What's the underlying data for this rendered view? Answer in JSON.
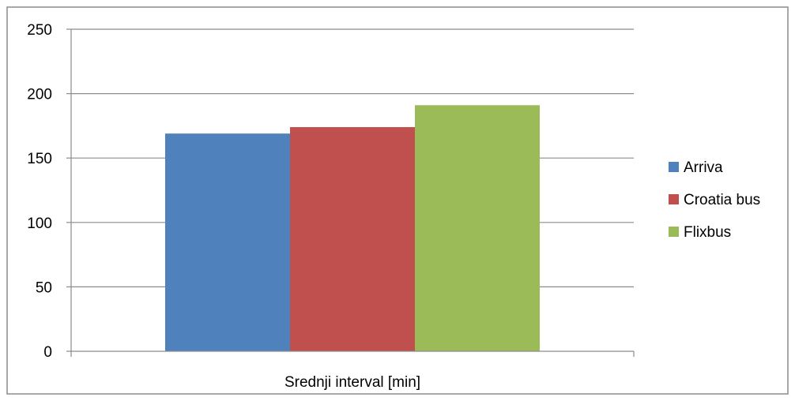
{
  "chart_data": {
    "type": "bar",
    "categories": [
      "Srednji interval [min]"
    ],
    "series": [
      {
        "name": "Arriva",
        "values": [
          169
        ],
        "color": "#4f81bd"
      },
      {
        "name": "Croatia bus",
        "values": [
          174
        ],
        "color": "#c0504d"
      },
      {
        "name": "Flixbus",
        "values": [
          191
        ],
        "color": "#9bbb59"
      }
    ],
    "title": "",
    "xlabel": "",
    "ylabel": "",
    "ylim": [
      0,
      250
    ],
    "yticks": [
      0,
      50,
      100,
      150,
      200,
      250
    ],
    "ytick_labels": [
      "0",
      "50",
      "100",
      "150",
      "200",
      "250"
    ],
    "grid": true,
    "legend_position": "right"
  }
}
